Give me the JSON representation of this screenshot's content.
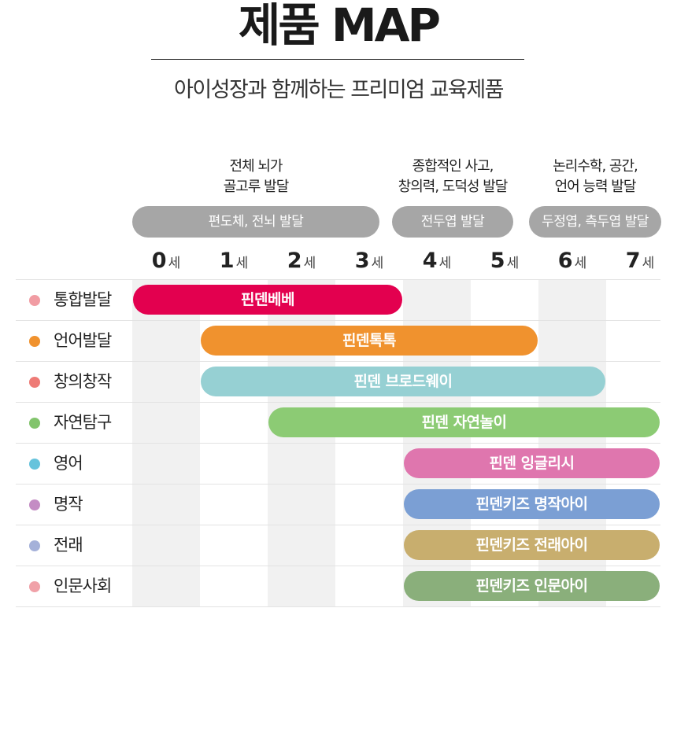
{
  "header": {
    "title": "제품 MAP",
    "subtitle": "아이성장과 함께하는 프리미엄 교육제품"
  },
  "stages": [
    {
      "desc_line1": "전체 뇌가",
      "desc_line2": "골고루 발달",
      "label": "편도체, 전뇌 발달"
    },
    {
      "desc_line1": "종합적인 사고,",
      "desc_line2": "창의력, 도덕성 발달",
      "label": "전두엽 발달"
    },
    {
      "desc_line1": "논리수학, 공간,",
      "desc_line2": "언어 능력 발달",
      "label": "두정엽, 측두엽 발달"
    }
  ],
  "age_unit": "세",
  "ages": [
    "0",
    "1",
    "2",
    "3",
    "4",
    "5",
    "6",
    "7"
  ],
  "rows": [
    {
      "category": "통합발달",
      "product": "핀덴베베",
      "start_age": 0,
      "end_age": 4,
      "dot_color": "#f19ca3",
      "bar_color": "#e3004f"
    },
    {
      "category": "언어발달",
      "product": "핀덴톡톡",
      "start_age": 1,
      "end_age": 6,
      "dot_color": "#f0922e",
      "bar_color": "#f0922e"
    },
    {
      "category": "창의창작",
      "product": "핀덴 브로드웨이",
      "start_age": 1,
      "end_age": 7,
      "dot_color": "#ee7b76",
      "bar_color": "#96d0d3"
    },
    {
      "category": "자연탐구",
      "product": "핀덴 자연놀이",
      "start_age": 2,
      "end_age": 8,
      "dot_color": "#82c46c",
      "bar_color": "#8ccb74"
    },
    {
      "category": "영어",
      "product": "핀덴 잉글리시",
      "start_age": 4,
      "end_age": 8,
      "dot_color": "#66c3dc",
      "bar_color": "#df76ae"
    },
    {
      "category": "명작",
      "product": "핀덴키즈 명작아이",
      "start_age": 4,
      "end_age": 8,
      "dot_color": "#c48cc4",
      "bar_color": "#7b9fd4"
    },
    {
      "category": "전래",
      "product": "핀덴키즈 전래아이",
      "start_age": 4,
      "end_age": 8,
      "dot_color": "#a5b1d9",
      "bar_color": "#c8ae6e"
    },
    {
      "category": "인문사회",
      "product": "핀덴키즈 인문아이",
      "start_age": 4,
      "end_age": 8,
      "dot_color": "#f0a1a8",
      "bar_color": "#8aaf7b"
    }
  ]
}
